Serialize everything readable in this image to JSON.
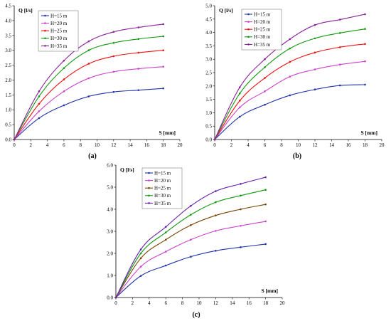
{
  "chart_data": [
    {
      "type": "line",
      "panel_label": "(a)",
      "ylabel": "Q [l/s]",
      "xlabel": "S [mm]",
      "xlim": [
        0,
        20
      ],
      "ylim": [
        0,
        4.5
      ],
      "xticks": [
        "0",
        "2",
        "4",
        "6",
        "8",
        "10",
        "12",
        "14",
        "16",
        "18",
        "20"
      ],
      "yticks": [
        "0.0",
        "0.5",
        "1.0",
        "1.5",
        "2.0",
        "2.5",
        "3.0",
        "3.5",
        "4.0",
        "4.5"
      ],
      "legend_position": "top-left",
      "series": [
        {
          "name": "H=15 m",
          "color": "#2233aa",
          "x": [
            0,
            3,
            6,
            9,
            12,
            15,
            18
          ],
          "y": [
            0,
            0.72,
            1.15,
            1.45,
            1.6,
            1.66,
            1.72
          ]
        },
        {
          "name": "H=20 m",
          "color": "#cc44cc",
          "x": [
            0,
            3,
            6,
            9,
            12,
            15,
            18
          ],
          "y": [
            0,
            0.95,
            1.62,
            2.06,
            2.28,
            2.38,
            2.45
          ]
        },
        {
          "name": "H=25 m",
          "color": "#ee1111",
          "x": [
            0,
            3,
            6,
            9,
            12,
            15,
            18
          ],
          "y": [
            0,
            1.2,
            2.02,
            2.55,
            2.8,
            2.92,
            3.0
          ]
        },
        {
          "name": "H=30 m",
          "color": "#119911",
          "x": [
            0,
            3,
            6,
            9,
            12,
            15,
            18
          ],
          "y": [
            0,
            1.45,
            2.4,
            3.0,
            3.25,
            3.38,
            3.47
          ]
        },
        {
          "name": "H=35 m",
          "color": "#882299",
          "x": [
            0,
            3,
            6,
            9,
            12,
            15,
            18
          ],
          "y": [
            0,
            1.62,
            2.65,
            3.3,
            3.62,
            3.77,
            3.88
          ]
        }
      ]
    },
    {
      "type": "line",
      "panel_label": "(b)",
      "ylabel": "Q [l/s]",
      "xlabel": "S [mm]",
      "xlim": [
        0,
        20
      ],
      "ylim": [
        0,
        5.0
      ],
      "xticks": [
        "0",
        "2",
        "4",
        "6",
        "8",
        "10",
        "12",
        "14",
        "16",
        "18",
        "20"
      ],
      "yticks": [
        "0.0",
        "0.5",
        "1.0",
        "1.5",
        "2.0",
        "2.5",
        "3.0",
        "3.5",
        "4.0",
        "4.5",
        "5.0"
      ],
      "legend_position": "top-left",
      "series": [
        {
          "name": "H=15 m",
          "color": "#2233aa",
          "x": [
            0,
            3,
            6,
            9,
            12,
            15,
            18
          ],
          "y": [
            0,
            0.85,
            1.3,
            1.65,
            1.87,
            2.02,
            2.05
          ]
        },
        {
          "name": "H=20 m",
          "color": "#cc44cc",
          "x": [
            0,
            3,
            6,
            9,
            12,
            15,
            18
          ],
          "y": [
            0,
            1.2,
            1.8,
            2.35,
            2.62,
            2.8,
            2.92
          ]
        },
        {
          "name": "H=25 m",
          "color": "#ee1111",
          "x": [
            0,
            3,
            6,
            9,
            12,
            15,
            18
          ],
          "y": [
            0,
            1.45,
            2.3,
            2.9,
            3.25,
            3.45,
            3.57
          ]
        },
        {
          "name": "H=30 m",
          "color": "#119911",
          "x": [
            0,
            3,
            6,
            9,
            12,
            15,
            18
          ],
          "y": [
            0,
            1.72,
            2.7,
            3.4,
            3.78,
            3.98,
            4.13
          ]
        },
        {
          "name": "H=35 m",
          "color": "#882299",
          "x": [
            0,
            3,
            6,
            9,
            12,
            15,
            18
          ],
          "y": [
            0,
            1.95,
            3.0,
            3.75,
            4.28,
            4.48,
            4.68
          ]
        }
      ]
    },
    {
      "type": "line",
      "panel_label": "(c)",
      "ylabel": "Q [l/s]",
      "xlabel": "S [mm]",
      "xlim": [
        0,
        20
      ],
      "ylim": [
        0,
        6.0
      ],
      "xticks": [
        "0",
        "2",
        "4",
        "6",
        "8",
        "10",
        "12",
        "14",
        "16",
        "18",
        "20"
      ],
      "yticks": [
        "0.0",
        "1.0",
        "2.0",
        "3.0",
        "4.0",
        "5.0",
        "6.0"
      ],
      "legend_position": "top-left",
      "series": [
        {
          "name": "H=15 m",
          "color": "#2233aa",
          "x": [
            0,
            3,
            6,
            9,
            12,
            15,
            18
          ],
          "y": [
            0,
            0.98,
            1.45,
            1.85,
            2.12,
            2.28,
            2.42
          ]
        },
        {
          "name": "H=20 m",
          "color": "#cc44cc",
          "x": [
            0,
            3,
            6,
            9,
            12,
            15,
            18
          ],
          "y": [
            0,
            1.4,
            2.08,
            2.62,
            3.02,
            3.25,
            3.45
          ]
        },
        {
          "name": "H=25 m",
          "color": "#774400",
          "x": [
            0,
            3,
            6,
            9,
            12,
            15,
            18
          ],
          "y": [
            0,
            1.78,
            2.62,
            3.28,
            3.72,
            4.0,
            4.22
          ]
        },
        {
          "name": "H=30 m",
          "color": "#119911",
          "x": [
            0,
            3,
            6,
            9,
            12,
            15,
            18
          ],
          "y": [
            0,
            2.0,
            2.95,
            3.75,
            4.32,
            4.62,
            4.88
          ]
        },
        {
          "name": "H=35 m",
          "color": "#6622aa",
          "x": [
            0,
            3,
            6,
            9,
            12,
            15,
            18
          ],
          "y": [
            0,
            2.18,
            3.2,
            4.15,
            4.82,
            5.15,
            5.45
          ]
        }
      ]
    }
  ]
}
